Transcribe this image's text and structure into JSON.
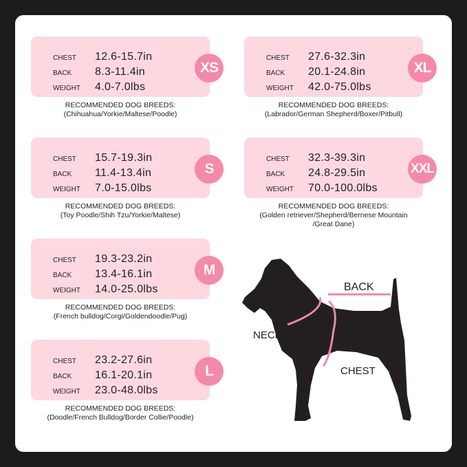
{
  "labels": {
    "chest": "CHEST",
    "back": "BACK",
    "weight": "WEIGHT",
    "recommended": "RECOMMENDED DOG BREEDS:"
  },
  "sizes": [
    {
      "name": "XS",
      "chest": "12.6-15.7in",
      "back": "8.3-11.4in",
      "weight": "4.0-7.0lbs",
      "breeds": [
        "(Chihuahua/Yorkie/Maltese/Poodle)"
      ]
    },
    {
      "name": "S",
      "chest": "15.7-19.3in",
      "back": "11.4-13.4in",
      "weight": "7.0-15.0lbs",
      "breeds": [
        "(Toy Poodle/Shih Tzu/Yorkie/Maltese)"
      ]
    },
    {
      "name": "M",
      "chest": "19.3-23.2in",
      "back": "13.4-16.1in",
      "weight": "14.0-25.0lbs",
      "breeds": [
        "(French bulldog/Corgi/Goldendoodle/Pug)"
      ]
    },
    {
      "name": "L",
      "chest": "23.2-27.6in",
      "back": "16.1-20.1in",
      "weight": "23.0-48.0lbs",
      "breeds": [
        "(Doodle/French Bulldog/Border Collie/Poodle)"
      ]
    },
    {
      "name": "XL",
      "chest": "27.6-32.3in",
      "back": "20.1-24.8in",
      "weight": "42.0-75.0lbs",
      "breeds": [
        "(Labrador/German Shepherd/Boxer/Pitbull)"
      ]
    },
    {
      "name": "XXL",
      "chest": "32.3-39.3in",
      "back": "24.8-29.5in",
      "weight": "70.0-100.0lbs",
      "breeds": [
        "(Golden retriever/Shepherd/Bernese Mountain",
        "/Great Dane)"
      ]
    }
  ],
  "diagram": {
    "back": "BACK",
    "neck": "NECK",
    "chest": "CHEST"
  },
  "colors": {
    "card": "#fdd8e0",
    "badge": "#f48aa8",
    "measure_line": "#e98aa8",
    "dog": "#231f20"
  }
}
